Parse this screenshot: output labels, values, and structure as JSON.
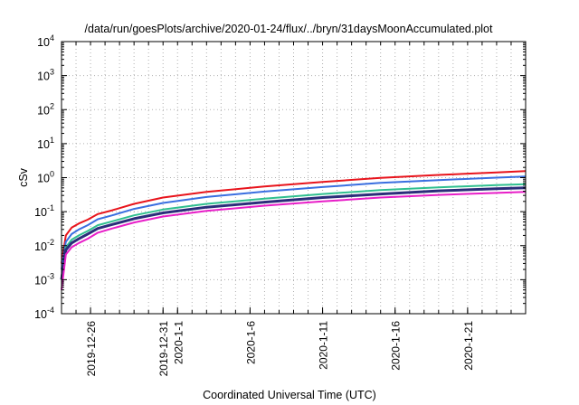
{
  "chart_data": {
    "type": "line",
    "title": "/data/run/goesPlots/archive/2020-01-24/flux/../bryn/31daysMoonAccumulated.plot",
    "xlabel": "Coordinated Universal Time (UTC)",
    "ylabel": "cSv",
    "y_scale": "log",
    "ylim": [
      0.0001,
      10000
    ],
    "y_ticks": [
      {
        "value": 0.0001,
        "base": "10",
        "exp": "-4"
      },
      {
        "value": 0.001,
        "base": "10",
        "exp": "-3"
      },
      {
        "value": 0.01,
        "base": "10",
        "exp": "-2"
      },
      {
        "value": 0.1,
        "base": "10",
        "exp": "-1"
      },
      {
        "value": 1,
        "base": "10",
        "exp": "0"
      },
      {
        "value": 10,
        "base": "10",
        "exp": "1"
      },
      {
        "value": 100,
        "base": "10",
        "exp": "2"
      },
      {
        "value": 1000,
        "base": "10",
        "exp": "3"
      },
      {
        "value": 10000,
        "base": "10",
        "exp": "4"
      }
    ],
    "x_ticks": [
      {
        "day": 2,
        "label": "2019-12-26"
      },
      {
        "day": 7,
        "label": "2019-12-31"
      },
      {
        "day": 8,
        "label": "2020-1-1"
      },
      {
        "day": 13,
        "label": "2020-1-6"
      },
      {
        "day": 18,
        "label": "2020-1-11"
      },
      {
        "day": 23,
        "label": "2020-1-16"
      },
      {
        "day": 28,
        "label": "2020-1-21"
      }
    ],
    "xlim_days": [
      0,
      32
    ],
    "grid": true,
    "series": [
      {
        "color": "#e8141c",
        "width": 2,
        "x": [
          0,
          0.3,
          0.7,
          1.2,
          1.8,
          2.5,
          3.5,
          5,
          7,
          10,
          14,
          18,
          22,
          26,
          30,
          32
        ],
        "y": [
          0.003,
          0.02,
          0.034,
          0.045,
          0.058,
          0.085,
          0.11,
          0.17,
          0.26,
          0.38,
          0.55,
          0.75,
          0.98,
          1.2,
          1.42,
          1.55
        ]
      },
      {
        "color": "#3a6fe0",
        "width": 2,
        "x": [
          0,
          0.3,
          0.7,
          1.2,
          1.8,
          2.5,
          3.5,
          5,
          7,
          10,
          14,
          18,
          22,
          26,
          30,
          32
        ],
        "y": [
          0.002,
          0.013,
          0.022,
          0.03,
          0.04,
          0.06,
          0.078,
          0.12,
          0.18,
          0.27,
          0.39,
          0.53,
          0.7,
          0.85,
          1.0,
          1.08
        ]
      },
      {
        "color": "#2fbf8f",
        "width": 2,
        "x": [
          0,
          0.3,
          0.7,
          1.2,
          1.8,
          2.5,
          3.5,
          5,
          7,
          10,
          14,
          18,
          22,
          26,
          30,
          32
        ],
        "y": [
          0.0012,
          0.009,
          0.015,
          0.02,
          0.027,
          0.04,
          0.052,
          0.078,
          0.115,
          0.17,
          0.24,
          0.33,
          0.43,
          0.52,
          0.6,
          0.64
        ]
      },
      {
        "color": "#2b2d7a",
        "width": 3,
        "x": [
          0,
          0.3,
          0.7,
          1.2,
          1.8,
          2.5,
          3.5,
          5,
          7,
          10,
          14,
          18,
          22,
          26,
          30,
          32
        ],
        "y": [
          0.001,
          0.0075,
          0.012,
          0.016,
          0.022,
          0.032,
          0.042,
          0.062,
          0.092,
          0.135,
          0.19,
          0.26,
          0.33,
          0.41,
          0.47,
          0.5
        ]
      },
      {
        "color": "#e81ec8",
        "width": 2,
        "x": [
          0,
          0.3,
          0.7,
          1.2,
          1.8,
          2.5,
          3.5,
          5,
          7,
          10,
          14,
          18,
          22,
          26,
          30,
          32
        ],
        "y": [
          0.0005,
          0.0055,
          0.009,
          0.012,
          0.016,
          0.024,
          0.032,
          0.048,
          0.072,
          0.105,
          0.15,
          0.2,
          0.26,
          0.31,
          0.355,
          0.38
        ]
      }
    ]
  }
}
